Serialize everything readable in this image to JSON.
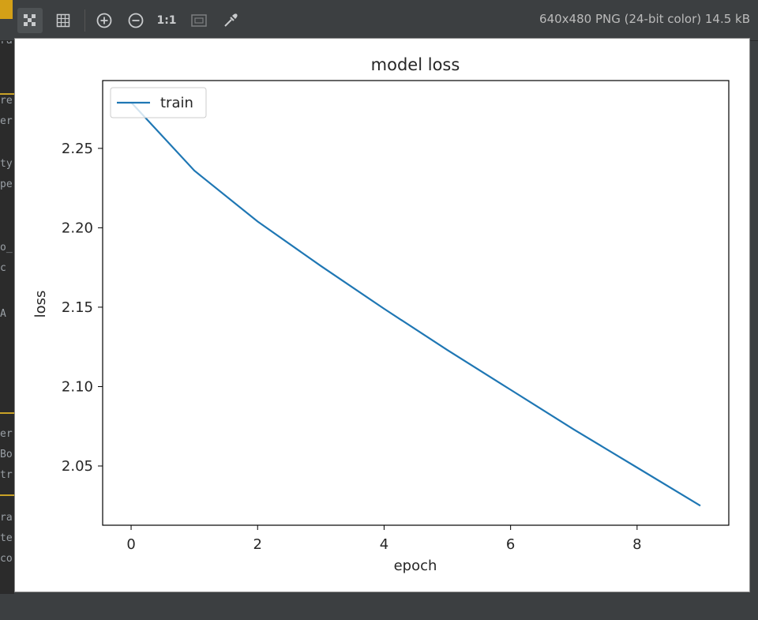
{
  "toolbar": {
    "buttons": [
      {
        "name": "chessboard-icon",
        "icon": "checkerboard"
      },
      {
        "name": "grid-icon",
        "icon": "grid"
      },
      {
        "name": "zoom-in-icon",
        "icon": "zoom-in"
      },
      {
        "name": "zoom-out-icon",
        "icon": "zoom-out"
      },
      {
        "name": "actual-size-button",
        "label": "1:1"
      },
      {
        "name": "fit-window-icon",
        "icon": "fit"
      },
      {
        "name": "color-picker-icon",
        "icon": "eyedropper"
      }
    ],
    "image_info": "640x480 PNG (24-bit color) 14.5 kB"
  },
  "left_fragments": [
    "ra",
    "re",
    "er",
    "ty",
    "pe",
    "o_",
    "c",
    "A",
    "er",
    "Bo",
    "tr",
    "ra",
    "te",
    "co"
  ],
  "chart_data": {
    "type": "line",
    "title": "model loss",
    "xlabel": "epoch",
    "ylabel": "loss",
    "x": [
      0,
      1,
      2,
      3,
      4,
      5,
      6,
      7,
      8,
      9
    ],
    "series": [
      {
        "name": "train",
        "values": [
          2.279,
          2.236,
          2.204,
          2.176,
          2.149,
          2.123,
          2.098,
          2.073,
          2.049,
          2.025
        ]
      }
    ],
    "xlim": [
      -0.45,
      9.45
    ],
    "ylim": [
      2.0127,
      2.2927
    ],
    "xticks": [
      0,
      2,
      4,
      6,
      8
    ],
    "xtick_labels": [
      "0",
      "2",
      "4",
      "6",
      "8"
    ],
    "yticks": [
      2.05,
      2.1,
      2.15,
      2.2,
      2.25
    ],
    "ytick_labels": [
      "2.05",
      "2.10",
      "2.15",
      "2.20",
      "2.25"
    ],
    "legend_placement": "upper-left",
    "grid": false,
    "line_color": "#1f77b4"
  }
}
